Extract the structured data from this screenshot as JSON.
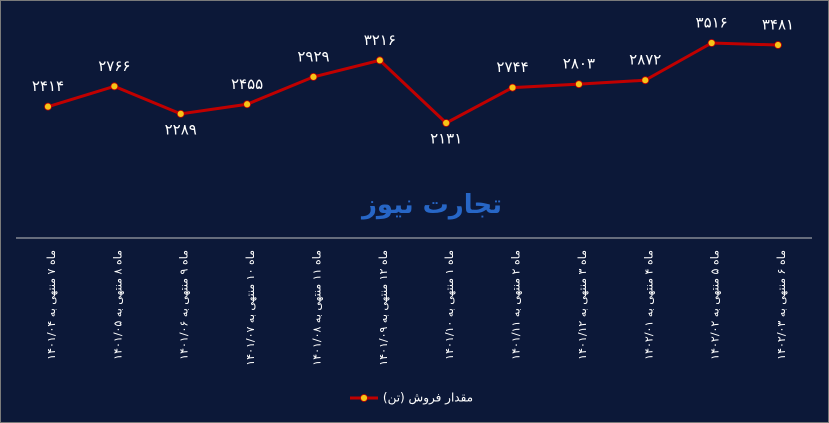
{
  "chart_data": {
    "type": "line",
    "watermark": "تجارت نیوز",
    "categories": [
      "ماه ۷ منتهی به ۱۴۰۱/۰۴",
      "ماه ۸ منتهی به ۱۴۰۱/۰۵",
      "ماه ۹ منتهی به ۱۴۰۱/۰۶",
      "ماه ۱۰ منتهی به ۱۴۰۱/۰۷",
      "ماه ۱۱ منتهی به ۱۴۰۱/۰۸",
      "ماه ۱۲ منتهی به ۱۴۰۱/۰۹",
      "ماه ۱ منتهی به ۱۴۰۱/۱۰",
      "ماه ۲ منتهی به ۱۴۰۱/۱۱",
      "ماه ۳ منتهی به ۱۴۰۱/۱۲",
      "ماه ۴ منتهی به ۱۴۰۲/۰۱",
      "ماه ۵ منتهی به ۱۴۰۲/۰۲",
      "ماه ۶ منتهی به ۱۴۰۲/۰۳"
    ],
    "series": [
      {
        "name": "مقدار فروش (تن)",
        "color": "#c00000",
        "marker_color": "#f5c518",
        "values": [
          2414,
          2766,
          2289,
          2455,
          2929,
          3216,
          2131,
          2744,
          2803,
          2872,
          3516,
          3481
        ],
        "value_labels": [
          "۲۴۱۴",
          "۲۷۶۶",
          "۲۲۸۹",
          "۲۴۵۵",
          "۲۹۲۹",
          "۳۲۱۶",
          "۲۱۳۱",
          "۲۷۴۴",
          "۲۸۰۳",
          "۲۸۷۲",
          "۳۵۱۶",
          "۳۴۸۱"
        ]
      }
    ],
    "legend": "bottom"
  }
}
